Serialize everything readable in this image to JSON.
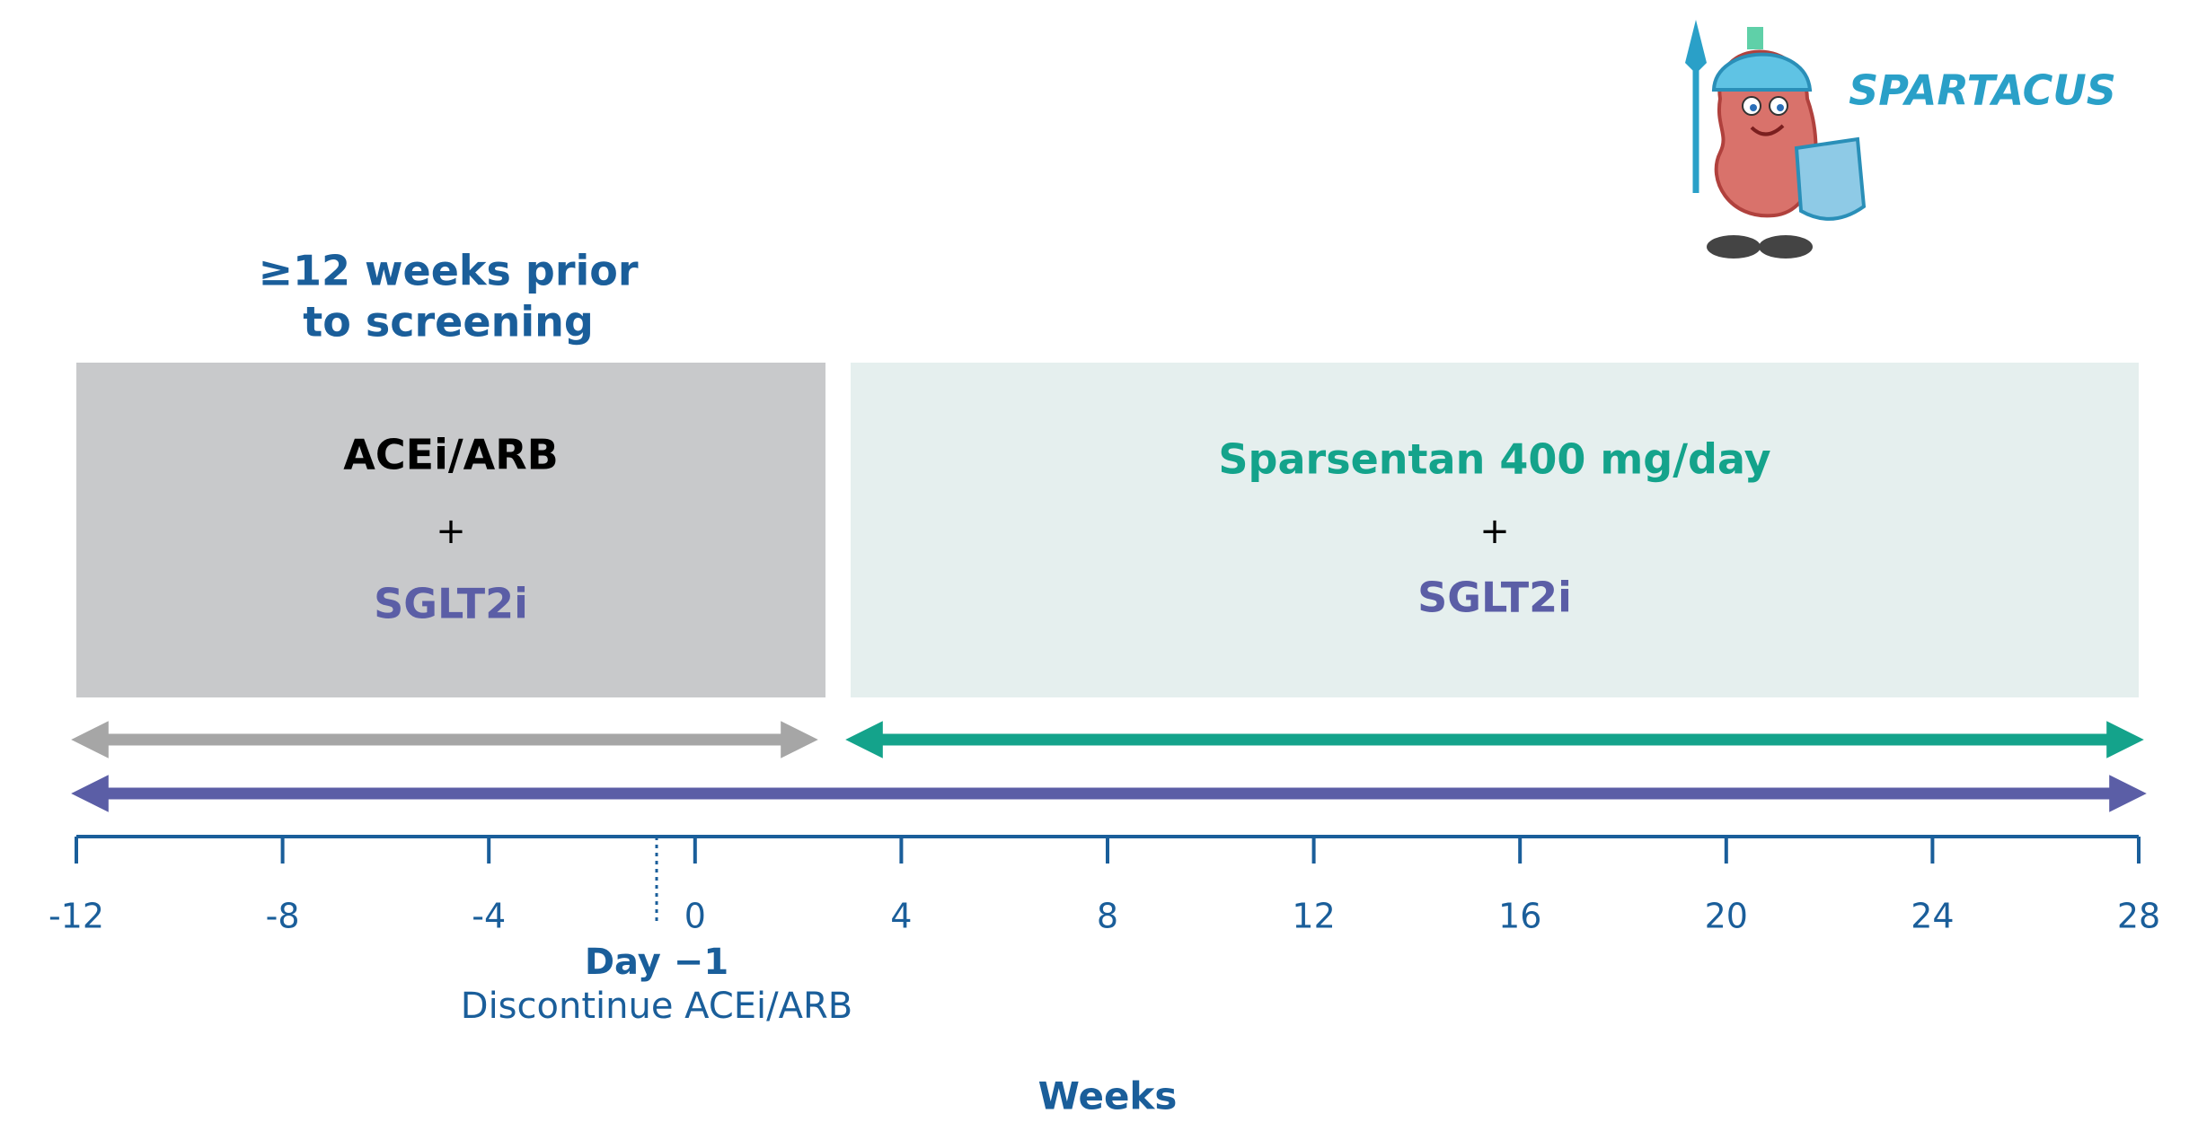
{
  "logo": {
    "text": "SPARTACUS"
  },
  "header": {
    "lines": [
      "≥12 weeks prior",
      "to screening"
    ]
  },
  "periods": [
    {
      "drug": "ACEi/ARB",
      "plus": "+",
      "combo": "SGLT2i"
    },
    {
      "drug": "Sparsentan 400 mg/day",
      "plus": "+",
      "combo": "SGLT2i"
    }
  ],
  "axis": {
    "ticks": [
      -12,
      -8,
      -4,
      0,
      4,
      8,
      12,
      16,
      20,
      24,
      28
    ],
    "label": "Weeks"
  },
  "marker": {
    "title": "Day −1",
    "text": "Discontinue ACEi/ARB"
  }
}
